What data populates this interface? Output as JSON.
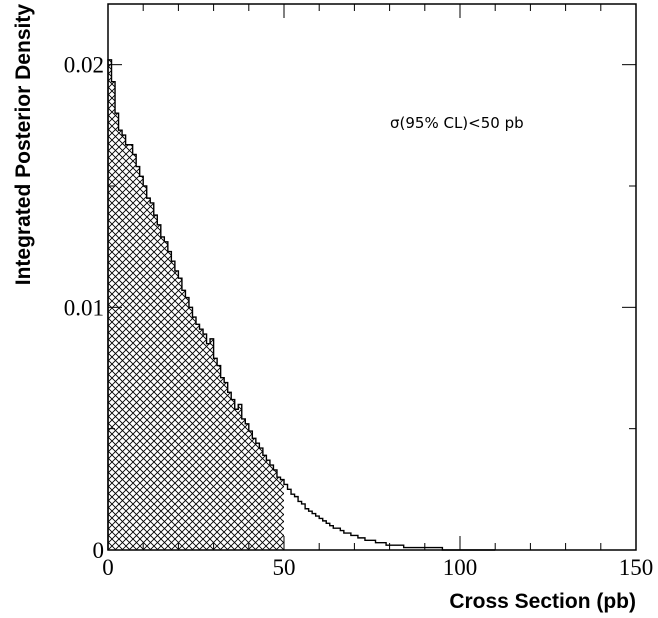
{
  "chart_data": {
    "type": "histogram",
    "title": "",
    "xlabel": "Cross Section (pb)",
    "ylabel": "Integrated Posterior Density",
    "xlim": [
      0,
      150
    ],
    "ylim": [
      0,
      0.0225
    ],
    "grid": false,
    "x_ticks": [
      {
        "value": 0,
        "label": "0"
      },
      {
        "value": 50,
        "label": "50"
      },
      {
        "value": 100,
        "label": "100"
      },
      {
        "value": 150,
        "label": "150"
      }
    ],
    "x_minor_ticks": [
      10,
      20,
      30,
      40,
      60,
      70,
      80,
      90,
      110,
      120,
      130,
      140
    ],
    "y_ticks": [
      {
        "value": 0,
        "label": "0"
      },
      {
        "value": 0.01,
        "label": "0.01"
      },
      {
        "value": 0.02,
        "label": "0.02"
      }
    ],
    "y_minor_ticks": [
      0.005,
      0.015
    ],
    "annotation": "σ(95% CL)<50 pb",
    "shaded_region": {
      "from": 0,
      "to": 50,
      "pattern": "crosshatch"
    },
    "bin_width": 1,
    "x_start": 0,
    "values": [
      0.0202,
      0.0193,
      0.018,
      0.0173,
      0.0171,
      0.0167,
      0.0167,
      0.0163,
      0.0158,
      0.0154,
      0.015,
      0.0145,
      0.0143,
      0.0138,
      0.0134,
      0.0129,
      0.0127,
      0.0123,
      0.0119,
      0.0115,
      0.0112,
      0.0107,
      0.0104,
      0.01,
      0.0096,
      0.0093,
      0.0091,
      0.0089,
      0.0085,
      0.0087,
      0.0079,
      0.0076,
      0.0071,
      0.0069,
      0.0065,
      0.0062,
      0.0058,
      0.006,
      0.0054,
      0.0052,
      0.0049,
      0.0046,
      0.0044,
      0.0042,
      0.0039,
      0.0037,
      0.0035,
      0.0033,
      0.003,
      0.0029,
      0.0027,
      0.0025,
      0.0023,
      0.0022,
      0.002,
      0.0019,
      0.0017,
      0.0016,
      0.0015,
      0.0014,
      0.0013,
      0.0012,
      0.0011,
      0.001,
      0.0009,
      0.0009,
      0.0008,
      0.0007,
      0.0007,
      0.0006,
      0.0006,
      0.0005,
      0.0005,
      0.0004,
      0.0004,
      0.0004,
      0.0003,
      0.0003,
      0.0003,
      0.0002,
      0.0002,
      0.0002,
      0.0002,
      0.0002,
      0.0001,
      0.0001,
      0.0001,
      0.0001,
      0.0001,
      0.0001,
      0.0001,
      0.0001,
      0.0001,
      0.0001,
      0.0001,
      0.0,
      0.0,
      0.0,
      0.0,
      0.0,
      0.0,
      0.0,
      0.0,
      0.0,
      0.0,
      0.0,
      0.0,
      0.0,
      0.0,
      0.0
    ]
  }
}
